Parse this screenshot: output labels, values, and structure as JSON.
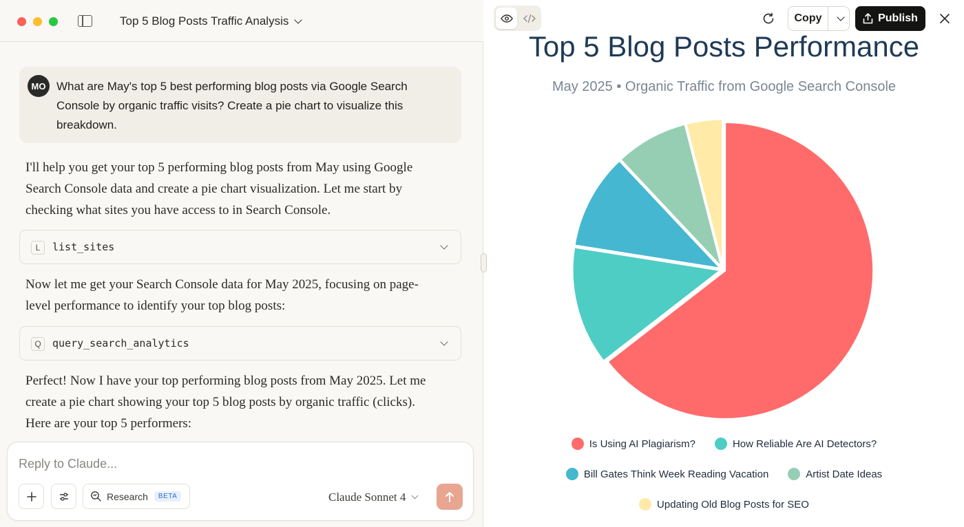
{
  "conversation": {
    "title": "Top 5 Blog Posts Traffic Analysis"
  },
  "user_message": {
    "avatar_initials": "MO",
    "text": "What are May's top 5 best performing blog posts via Google Search Console by organic traffic visits? Create a pie chart to visualize this breakdown."
  },
  "assistant": {
    "para1": "I'll help you get your top 5 performing blog posts from May using Google Search Console data and create a pie chart visualization. Let me start by checking what sites you have access to in Search Console.",
    "tool1": {
      "badge": "L",
      "name": "list_sites"
    },
    "para2": "Now let me get your Search Console data for May 2025, focusing on page-level performance to identify your top blog posts:",
    "tool2": {
      "badge": "Q",
      "name": "query_search_analytics"
    },
    "para3": "Perfect! Now I have your top performing blog posts from May 2025. Let me create a pie chart showing your top 5 blog posts by organic traffic (clicks). Here are your top 5 performers:"
  },
  "composer": {
    "placeholder": "Reply to Claude...",
    "research_label": "Research",
    "beta_label": "BETA",
    "model": "Claude Sonnet 4",
    "send_color": "#e8a590"
  },
  "artifact_toolbar": {
    "copy_label": "Copy",
    "publish_label": "Publish",
    "icons": [
      "eye-icon",
      "code-icon",
      "refresh-icon",
      "chevron-down-icon",
      "share-icon",
      "close-icon"
    ]
  },
  "chart_data": {
    "type": "pie",
    "title": "Top 5 Blog Posts Performance",
    "subtitle": "May 2025 • Organic Traffic from Google Search Console",
    "legend_position": "bottom",
    "categories": [
      "Is Using AI Plagiarism?",
      "How Reliable Are AI Detectors?",
      "Bill Gates Think Week Reading Vacation",
      "Artist Date Ideas",
      "Updating Old Blog Posts for SEO"
    ],
    "values": [
      64.5,
      13.0,
      10.5,
      8.0,
      4.0
    ],
    "unit": "percent share (estimated from slice angles)",
    "colors": [
      "#ff6b6b",
      "#4ecdc4",
      "#45b7d1",
      "#96ceb4",
      "#ffeaa7"
    ]
  }
}
